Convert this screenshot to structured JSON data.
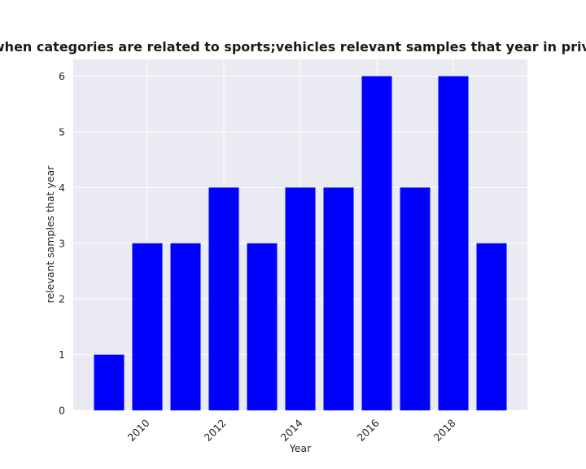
{
  "chart_data": {
    "type": "bar",
    "title": "Number of Years when categories are related to sports;vehicles relevant samples that year in privacy policies by Year",
    "xlabel": "Year",
    "ylabel": "relevant samples that year",
    "categories": [
      2009,
      2010,
      2011,
      2012,
      2013,
      2014,
      2015,
      2016,
      2017,
      2018,
      2019
    ],
    "values": [
      1,
      3,
      3,
      4,
      3,
      4,
      4,
      6,
      4,
      6,
      3
    ],
    "x_ticks": [
      2010,
      2012,
      2014,
      2016,
      2018
    ],
    "y_ticks": [
      0,
      1,
      2,
      3,
      4,
      5,
      6
    ],
    "ylim": [
      0,
      6.3
    ],
    "grid": true,
    "bar_color": "#0000ff",
    "plot_background": "#eaeaf2",
    "grid_color": "#ffffff"
  }
}
